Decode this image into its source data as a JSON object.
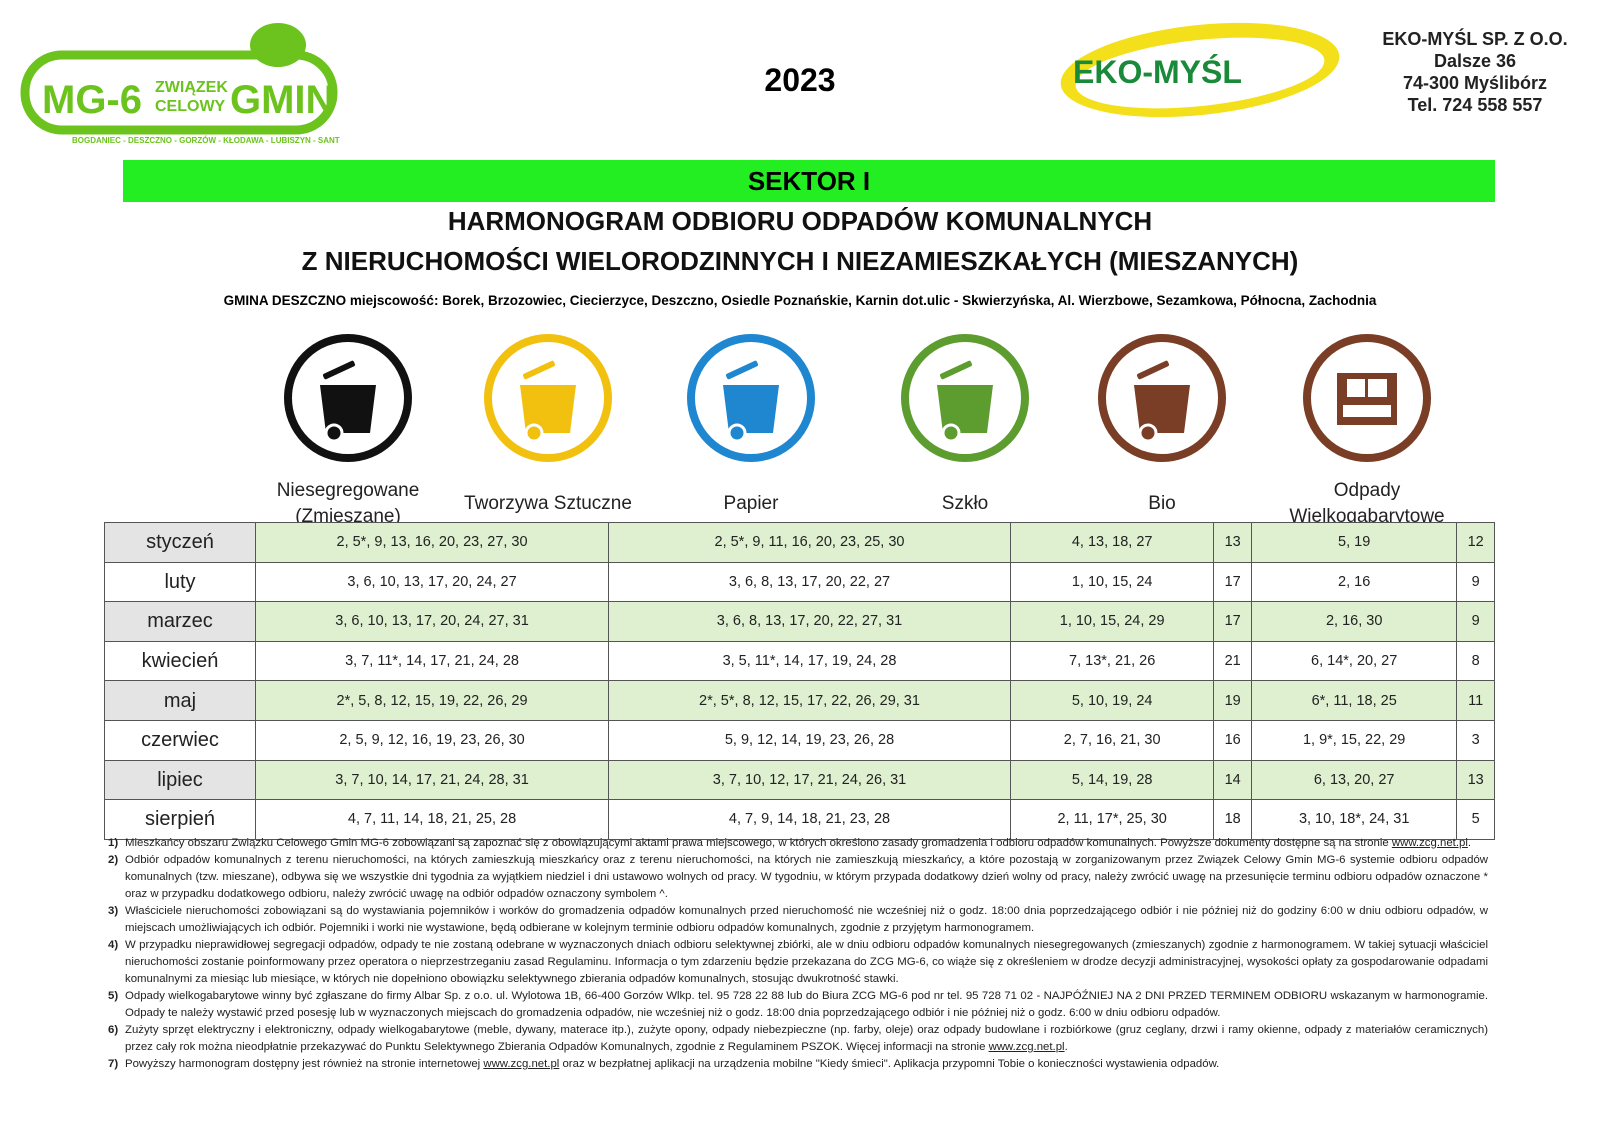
{
  "header": {
    "logo_left_text": "MG-6 ZWIĄZEK CELOWY GMIN",
    "logo_left_sub": "BOGDANIEC - DESZCZNO - GORZÓW - KŁODAWA - LUBISZYN - SANTOK",
    "year": "2023",
    "logo_right_text": "EKO-MYŚL",
    "company": [
      "EKO-MYŚL SP. Z O.O.",
      "Dalsze 36",
      "74-300 Myślibórz",
      "Tel. 724 558 557"
    ]
  },
  "sector": "SEKTOR I",
  "title_line1": "HARMONOGRAM ODBIORU ODPADÓW KOMUNALNYCH",
  "title_line2": "Z NIERUCHOMOŚCI WIELORODZINNYCH I NIEZAMIESZKAŁYCH (MIESZANYCH)",
  "gmina": "GMINA DESZCZNO miejscowość: Borek, Brzozowiec, Ciecierzyce, Deszczno, Osiedle Poznańskie, Karnin dot.ulic - Skwierzyńska, Al. Wierzbowe, Sezamkowa, Północna, Zachodnia",
  "categories": [
    {
      "label": "Niesegregowane (Zmieszane)",
      "color": "#111111",
      "icon": "trash-bin-icon"
    },
    {
      "label": "Tworzywa Sztuczne",
      "color": "#f2c10f",
      "icon": "trash-bin-icon"
    },
    {
      "label": "Papier",
      "color": "#1f86d0",
      "icon": "trash-bin-icon"
    },
    {
      "label": "Szkło",
      "color": "#5d9c2e",
      "icon": "trash-bin-icon"
    },
    {
      "label": "Bio",
      "color": "#7a3d26",
      "icon": "trash-bin-icon"
    },
    {
      "label": "Odpady Wielkogabarytowe",
      "color": "#7a3d26",
      "icon": "furniture-icon"
    }
  ],
  "table": {
    "rows": [
      {
        "month": "styczeń",
        "cells": [
          "2, 5*, 9, 13, 16, 20, 23, 27, 30",
          "2, 5*, 9, 11, 16, 20, 23, 25, 30",
          "4, 13, 18, 27",
          "13",
          "5, 19",
          "12"
        ]
      },
      {
        "month": "luty",
        "cells": [
          "3, 6, 10, 13, 17, 20, 24, 27",
          "3, 6, 8, 13, 17, 20, 22, 27",
          "1, 10, 15, 24",
          "17",
          "2, 16",
          "9"
        ]
      },
      {
        "month": "marzec",
        "cells": [
          "3, 6, 10, 13, 17, 20, 24, 27, 31",
          "3, 6, 8, 13, 17, 20, 22, 27, 31",
          "1, 10, 15, 24, 29",
          "17",
          "2, 16, 30",
          "9"
        ]
      },
      {
        "month": "kwiecień",
        "cells": [
          "3, 7, 11*, 14, 17, 21, 24, 28",
          "3, 5, 11*, 14, 17, 19, 24, 28",
          "7, 13*, 21, 26",
          "21",
          "6, 14*, 20, 27",
          "8"
        ]
      },
      {
        "month": "maj",
        "cells": [
          "2*, 5, 8, 12, 15, 19, 22, 26, 29",
          "2*, 5*, 8, 12, 15, 17, 22, 26, 29, 31",
          "5, 10, 19, 24",
          "19",
          "6*, 11, 18, 25",
          "11"
        ]
      },
      {
        "month": "czerwiec",
        "cells": [
          "2, 5, 9, 12, 16, 19, 23, 26, 30",
          "5, 9, 12, 14, 19, 23, 26, 28",
          "2, 7, 16, 21, 30",
          "16",
          "1, 9*, 15, 22, 29",
          "3"
        ]
      },
      {
        "month": "lipiec",
        "cells": [
          "3, 7, 10, 14, 17, 21, 24, 28, 31",
          "3, 7, 10, 12, 17, 21, 24, 26, 31",
          "5, 14, 19, 28",
          "14",
          "6, 13, 20, 27",
          "13"
        ]
      },
      {
        "month": "sierpień",
        "cells": [
          "4, 7, 11, 14, 18, 21, 25, 28",
          "4, 7, 9, 14, 18, 21, 23, 28",
          "2, 11, 17*, 25, 30",
          "18",
          "3, 10, 18*, 24, 31",
          "5"
        ]
      }
    ]
  },
  "notes": [
    {
      "num": "1)",
      "text": "Mieszkańcy obszaru Związku Celowego Gmin MG-6 zobowiązani są zapoznać się z obowiązującymi aktami prawa miejscowego, w których określono zasady gromadzenia i odbioru odpadów komunalnych. Powyższe dokumenty dostępne są na stronie ",
      "link": "www.zcg.net.pl",
      "after": "."
    },
    {
      "num": "2)",
      "text": "Odbiór odpadów komunalnych z terenu nieruchomości, na których zamieszkują mieszkańcy oraz z terenu nieruchomości, na których nie zamieszkują mieszkańcy, a które pozostają w zorganizowanym przez Związek Celowy Gmin MG-6 systemie odbioru odpadów komunalnych (tzw. mieszane), odbywa się we wszystkie dni tygodnia za wyjątkiem niedziel i dni ustawowo wolnych od pracy. W tygodniu, w którym przypada dodatkowy dzień wolny od pracy, należy zwrócić uwagę na przesunięcie terminu odbioru odpadów oznaczone * oraz w przypadku dodatkowego odbioru, należy zwrócić uwagę na odbiór odpadów oznaczony symbolem ^."
    },
    {
      "num": "3)",
      "text": "Właściciele nieruchomości zobowiązani są do wystawiania pojemników i worków do gromadzenia odpadów komunalnych przed nieruchomość nie wcześniej niż o godz. 18:00 dnia poprzedzającego odbiór i nie później niż do godziny 6:00 w dniu odbioru odpadów, w miejscach umożliwiających ich odbiór. Pojemniki i worki nie wystawione, będą odbierane w kolejnym terminie odbioru odpadów komunalnych, zgodnie z przyjętym harmonogramem."
    },
    {
      "num": "4)",
      "text": "W przypadku nieprawidłowej segregacji odpadów, odpady te nie zostaną odebrane w wyznaczonych dniach odbioru selektywnej zbiórki, ale w dniu odbioru odpadów komunalnych niesegregowanych (zmieszanych) zgodnie z harmonogramem. W takiej sytuacji właściciel nieruchomości zostanie poinformowany przez operatora o nieprzestrzeganiu zasad Regulaminu. Informacja o tym zdarzeniu będzie przekazana do ZCG MG-6, co wiąże się z określeniem w drodze decyzji administracyjnej, wysokości opłaty za gospodarowanie odpadami komunalnymi za miesiąc lub miesiące, w których nie dopełniono obowiązku selektywnego zbierania odpadów komunalnych, stosując dwukrotność stawki."
    },
    {
      "num": "5)",
      "text": "Odpady wielkogabarytowe winny być zgłaszane do firmy Albar Sp. z o.o. ul. Wylotowa 1B, 66-400 Gorzów Wlkp.  tel. 95 728 22 88 lub do Biura ZCG MG-6 pod nr tel. 95 728 71 02 - NAJPÓŹNIEJ NA 2 DNI PRZED TERMINEM ODBIORU wskazanym w harmonogramie. Odpady te należy wystawić przed posesję lub w wyznaczonych miejscach do gromadzenia odpadów, nie wcześniej niż o godz. 18:00 dnia poprzedzającego odbiór i nie później niż o godz. 6:00 w dniu odbioru odpadów."
    },
    {
      "num": "6)",
      "text": "Zużyty sprzęt elektryczny i elektroniczny, odpady wielkogabarytowe (meble, dywany, materace itp.), zużyte opony, odpady niebezpieczne (np. farby, oleje) oraz odpady budowlane i rozbiórkowe (gruz ceglany, drzwi i ramy okienne, odpady z materiałów ceramicznych) przez cały rok można nieodpłatnie przekazywać do Punktu Selektywnego Zbierania Odpadów Komunalnych, zgodnie z Regulaminem PSZOK. Więcej informacji na stronie ",
      "link": "www.zcg.net.pl",
      "after": "."
    },
    {
      "num": "7)",
      "text": "Powyższy harmonogram dostępny jest również na stronie internetowej ",
      "link": "www.zcg.net.pl",
      "after": " oraz w bezpłatnej aplikacji na urządzenia mobilne \"Kiedy śmieci\". Aplikacja przypomni Tobie o konieczności wystawienia odpadów."
    }
  ]
}
